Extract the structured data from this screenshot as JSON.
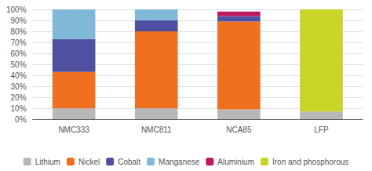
{
  "chart_data": {
    "type": "bar",
    "stacked": true,
    "grid": true,
    "legend": "bottom",
    "categories": [
      "NMC333",
      "NMC811",
      "NCA85",
      "LFP"
    ],
    "series": [
      {
        "name": "Lithium",
        "color": "#b8b8b8",
        "values": [
          10,
          10,
          9,
          7
        ]
      },
      {
        "name": "Nickel",
        "color": "#f07020",
        "values": [
          33,
          70,
          80,
          0
        ]
      },
      {
        "name": "Cobalt",
        "color": "#5050a0",
        "values": [
          30,
          10,
          5,
          0
        ]
      },
      {
        "name": "Manganese",
        "color": "#80b8d8",
        "values": [
          27,
          10,
          0,
          0
        ]
      },
      {
        "name": "Aluminium",
        "color": "#c01860",
        "values": [
          0,
          0,
          4,
          0
        ]
      },
      {
        "name": "Iron and phosphorous",
        "color": "#c8d428",
        "values": [
          0,
          0,
          0,
          93
        ]
      }
    ],
    "ylim": [
      0,
      100
    ],
    "yticks": [
      {
        "value": 0,
        "label": "0%"
      },
      {
        "value": 10,
        "label": "10%"
      },
      {
        "value": 20,
        "label": "20%"
      },
      {
        "value": 30,
        "label": "30%"
      },
      {
        "value": 40,
        "label": "40%"
      },
      {
        "value": 50,
        "label": "50%"
      },
      {
        "value": 60,
        "label": "60%"
      },
      {
        "value": 70,
        "label": "70%"
      },
      {
        "value": 80,
        "label": "80%"
      },
      {
        "value": 90,
        "label": "90%"
      },
      {
        "value": 100,
        "label": "100%"
      }
    ]
  }
}
